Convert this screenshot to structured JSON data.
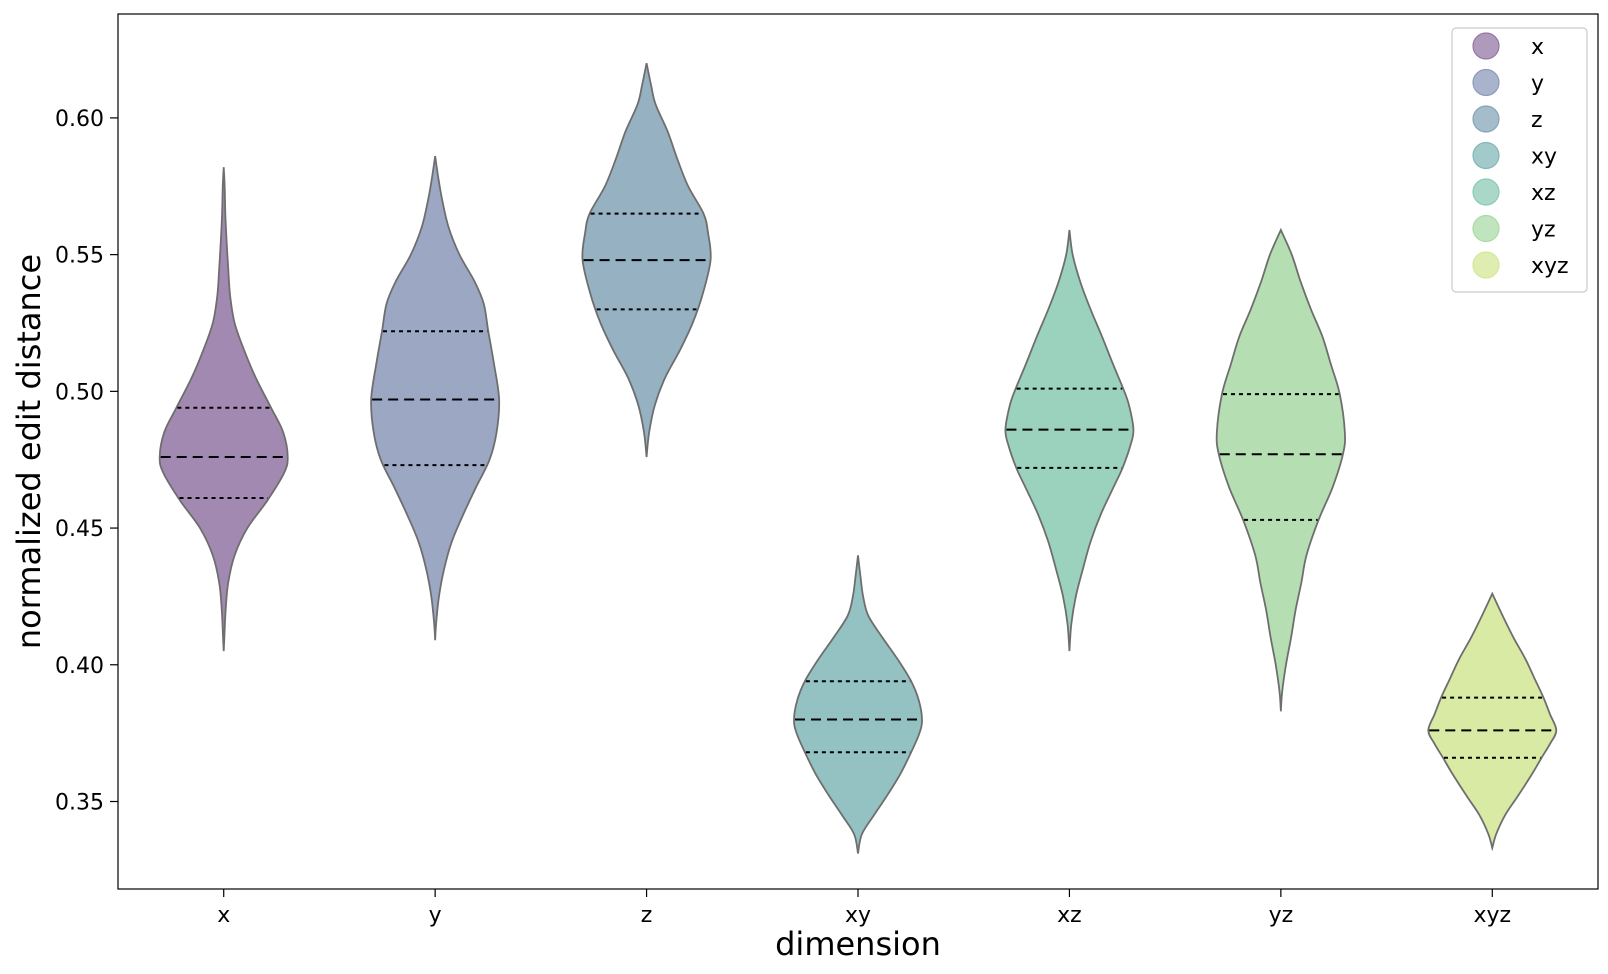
{
  "chart_data": {
    "type": "violin",
    "title": "",
    "xlabel": "dimension",
    "ylabel": "normalized edit distance",
    "categories": [
      "x",
      "y",
      "z",
      "xy",
      "xz",
      "yz",
      "xyz"
    ],
    "ylim": [
      0.318,
      0.638
    ],
    "yticks": [
      "0.35",
      "0.40",
      "0.45",
      "0.50",
      "0.55",
      "0.60"
    ],
    "grid": false,
    "legend": {
      "position": "top-right",
      "entries": [
        "x",
        "y",
        "z",
        "xy",
        "xz",
        "yz",
        "xyz"
      ]
    },
    "series": [
      {
        "name": "x",
        "color": "#8e6fa0",
        "min": 0.405,
        "max": 0.582,
        "q1": 0.461,
        "median": 0.476,
        "q3": 0.494,
        "profile": [
          [
            0.405,
            0.0
          ],
          [
            0.41,
            0.01
          ],
          [
            0.42,
            0.03
          ],
          [
            0.43,
            0.07
          ],
          [
            0.44,
            0.17
          ],
          [
            0.45,
            0.37
          ],
          [
            0.46,
            0.68
          ],
          [
            0.47,
            0.94
          ],
          [
            0.476,
            1.0
          ],
          [
            0.485,
            0.93
          ],
          [
            0.494,
            0.74
          ],
          [
            0.505,
            0.5
          ],
          [
            0.515,
            0.32
          ],
          [
            0.525,
            0.17
          ],
          [
            0.535,
            0.1
          ],
          [
            0.545,
            0.07
          ],
          [
            0.555,
            0.045
          ],
          [
            0.565,
            0.025
          ],
          [
            0.575,
            0.015
          ],
          [
            0.582,
            0.0
          ]
        ]
      },
      {
        "name": "y",
        "color": "#8594b6",
        "min": 0.409,
        "max": 0.586,
        "q1": 0.473,
        "median": 0.497,
        "q3": 0.522,
        "profile": [
          [
            0.409,
            0.0
          ],
          [
            0.415,
            0.015
          ],
          [
            0.425,
            0.06
          ],
          [
            0.435,
            0.14
          ],
          [
            0.445,
            0.26
          ],
          [
            0.455,
            0.44
          ],
          [
            0.465,
            0.64
          ],
          [
            0.475,
            0.85
          ],
          [
            0.485,
            0.96
          ],
          [
            0.497,
            1.0
          ],
          [
            0.51,
            0.92
          ],
          [
            0.522,
            0.83
          ],
          [
            0.532,
            0.76
          ],
          [
            0.54,
            0.62
          ],
          [
            0.55,
            0.38
          ],
          [
            0.56,
            0.21
          ],
          [
            0.57,
            0.11
          ],
          [
            0.578,
            0.05
          ],
          [
            0.586,
            0.0
          ]
        ]
      },
      {
        "name": "z",
        "color": "#7fa0b4",
        "min": 0.476,
        "max": 0.62,
        "q1": 0.53,
        "median": 0.548,
        "q3": 0.565,
        "profile": [
          [
            0.476,
            0.0
          ],
          [
            0.485,
            0.04
          ],
          [
            0.495,
            0.13
          ],
          [
            0.505,
            0.29
          ],
          [
            0.515,
            0.52
          ],
          [
            0.525,
            0.72
          ],
          [
            0.535,
            0.87
          ],
          [
            0.548,
            1.0
          ],
          [
            0.558,
            0.96
          ],
          [
            0.565,
            0.89
          ],
          [
            0.575,
            0.65
          ],
          [
            0.585,
            0.48
          ],
          [
            0.595,
            0.33
          ],
          [
            0.605,
            0.14
          ],
          [
            0.612,
            0.07
          ],
          [
            0.62,
            0.0
          ]
        ]
      },
      {
        "name": "xy",
        "color": "#7cb3b5",
        "min": 0.331,
        "max": 0.44,
        "q1": 0.368,
        "median": 0.38,
        "q3": 0.394,
        "profile": [
          [
            0.331,
            0.0
          ],
          [
            0.338,
            0.06
          ],
          [
            0.345,
            0.25
          ],
          [
            0.352,
            0.45
          ],
          [
            0.36,
            0.66
          ],
          [
            0.368,
            0.83
          ],
          [
            0.375,
            0.96
          ],
          [
            0.38,
            1.0
          ],
          [
            0.387,
            0.95
          ],
          [
            0.394,
            0.83
          ],
          [
            0.402,
            0.62
          ],
          [
            0.41,
            0.38
          ],
          [
            0.418,
            0.16
          ],
          [
            0.425,
            0.08
          ],
          [
            0.432,
            0.04
          ],
          [
            0.44,
            0.0
          ]
        ]
      },
      {
        "name": "xz",
        "color": "#84c8b0",
        "min": 0.405,
        "max": 0.559,
        "q1": 0.472,
        "median": 0.486,
        "q3": 0.501,
        "profile": [
          [
            0.405,
            0.0
          ],
          [
            0.415,
            0.03
          ],
          [
            0.425,
            0.1
          ],
          [
            0.435,
            0.21
          ],
          [
            0.445,
            0.33
          ],
          [
            0.455,
            0.49
          ],
          [
            0.465,
            0.69
          ],
          [
            0.472,
            0.83
          ],
          [
            0.48,
            0.95
          ],
          [
            0.486,
            1.0
          ],
          [
            0.495,
            0.93
          ],
          [
            0.501,
            0.84
          ],
          [
            0.51,
            0.68
          ],
          [
            0.52,
            0.51
          ],
          [
            0.53,
            0.33
          ],
          [
            0.54,
            0.17
          ],
          [
            0.55,
            0.05
          ],
          [
            0.559,
            0.0
          ]
        ]
      },
      {
        "name": "yz",
        "color": "#a5d8a2",
        "min": 0.383,
        "max": 0.559,
        "q1": 0.453,
        "median": 0.477,
        "q3": 0.499,
        "profile": [
          [
            0.383,
            0.0
          ],
          [
            0.39,
            0.02
          ],
          [
            0.4,
            0.08
          ],
          [
            0.41,
            0.16
          ],
          [
            0.42,
            0.23
          ],
          [
            0.43,
            0.32
          ],
          [
            0.44,
            0.4
          ],
          [
            0.453,
            0.59
          ],
          [
            0.465,
            0.81
          ],
          [
            0.477,
            0.97
          ],
          [
            0.485,
            1.0
          ],
          [
            0.499,
            0.92
          ],
          [
            0.51,
            0.78
          ],
          [
            0.52,
            0.65
          ],
          [
            0.53,
            0.47
          ],
          [
            0.54,
            0.31
          ],
          [
            0.55,
            0.17
          ],
          [
            0.559,
            0.0
          ]
        ]
      },
      {
        "name": "xyz",
        "color": "#d1e590",
        "min": 0.333,
        "max": 0.426,
        "q1": 0.366,
        "median": 0.376,
        "q3": 0.388,
        "profile": [
          [
            0.333,
            0.0
          ],
          [
            0.338,
            0.06
          ],
          [
            0.345,
            0.2
          ],
          [
            0.352,
            0.4
          ],
          [
            0.36,
            0.62
          ],
          [
            0.366,
            0.77
          ],
          [
            0.371,
            0.9
          ],
          [
            0.376,
            1.0
          ],
          [
            0.382,
            0.9
          ],
          [
            0.388,
            0.8
          ],
          [
            0.395,
            0.66
          ],
          [
            0.402,
            0.52
          ],
          [
            0.41,
            0.33
          ],
          [
            0.418,
            0.16
          ],
          [
            0.426,
            0.0
          ]
        ]
      }
    ]
  }
}
